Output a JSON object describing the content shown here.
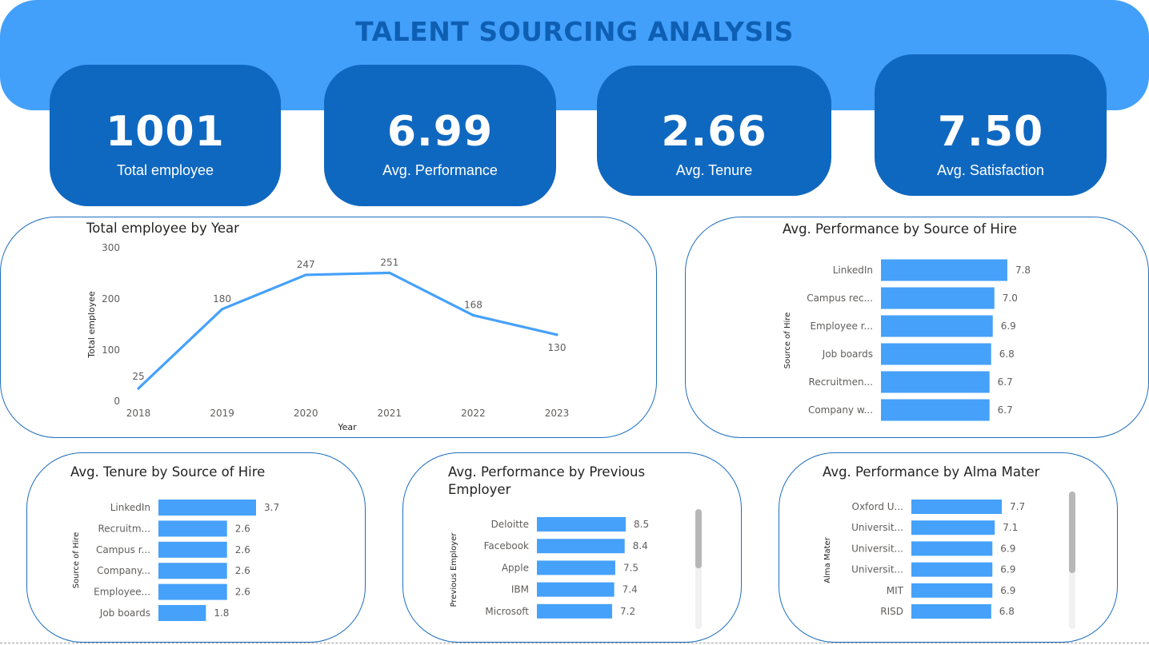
{
  "header": {
    "title": "TALENT SOURCING ANALYSIS"
  },
  "kpis": [
    {
      "value": "1001",
      "label": "Total employee"
    },
    {
      "value": "6.99",
      "label": "Avg. Performance"
    },
    {
      "value": "2.66",
      "label": "Avg. Tenure"
    },
    {
      "value": "7.50",
      "label": "Avg. Satisfaction"
    }
  ],
  "colors": {
    "banner": "#42a0fb",
    "kpi": "#0f68c0",
    "title": "#0e5fb3",
    "series": "#45a1fa",
    "card_border": "#1f6fbf"
  },
  "chart_data": [
    {
      "type": "line",
      "title": "Total employee by Year",
      "xlabel": "Year",
      "ylabel": "Total employee",
      "x": [
        "2018",
        "2019",
        "2020",
        "2021",
        "2022",
        "2023"
      ],
      "values": [
        25,
        180,
        247,
        251,
        168,
        130
      ],
      "yticks": [
        0,
        100,
        200,
        300
      ],
      "ylim": [
        0,
        300
      ],
      "grid": false
    },
    {
      "type": "bar",
      "orientation": "horizontal",
      "title": "Avg. Performance by Source of Hire",
      "ylabel": "Source of Hire",
      "categories": [
        "LinkedIn",
        "Campus rec...",
        "Employee r...",
        "Job boards",
        "Recruitmen...",
        "Company w..."
      ],
      "values": [
        7.8,
        7.0,
        6.9,
        6.8,
        6.7,
        6.7
      ],
      "labels": [
        "7.8",
        "7.0",
        "6.9",
        "6.8",
        "6.7",
        "6.7"
      ],
      "xlim": [
        0,
        8
      ]
    },
    {
      "type": "bar",
      "orientation": "horizontal",
      "title": "Avg. Tenure by Source of Hire",
      "ylabel": "Source of Hire",
      "categories": [
        "LinkedIn",
        "Recruitm...",
        "Campus r...",
        "Company...",
        "Employee...",
        "Job boards"
      ],
      "values": [
        3.7,
        2.6,
        2.6,
        2.6,
        2.6,
        1.8
      ],
      "labels": [
        "3.7",
        "2.6",
        "2.6",
        "2.6",
        "2.6",
        "1.8"
      ],
      "xlim": [
        0,
        3.7
      ]
    },
    {
      "type": "bar",
      "orientation": "horizontal",
      "title_lines": [
        "Avg. Performance by Previous",
        "Employer"
      ],
      "ylabel": "Previous Employer",
      "categories": [
        "Deloitte",
        "Facebook",
        "Apple",
        "IBM",
        "Microsoft"
      ],
      "values": [
        8.5,
        8.4,
        7.5,
        7.4,
        7.2
      ],
      "labels": [
        "8.5",
        "8.4",
        "7.5",
        "7.4",
        "7.2"
      ],
      "xlim": [
        0,
        8.5
      ]
    },
    {
      "type": "bar",
      "orientation": "horizontal",
      "title": "Avg. Performance by Alma Mater",
      "ylabel": "Alma Mater",
      "categories": [
        "Oxford U...",
        "Universit...",
        "Universit...",
        "Universit...",
        "MIT",
        "RISD"
      ],
      "values": [
        7.7,
        7.1,
        6.9,
        6.9,
        6.9,
        6.8
      ],
      "labels": [
        "7.7",
        "7.1",
        "6.9",
        "6.9",
        "6.9",
        "6.8"
      ],
      "xlim": [
        0,
        7.7
      ]
    }
  ]
}
